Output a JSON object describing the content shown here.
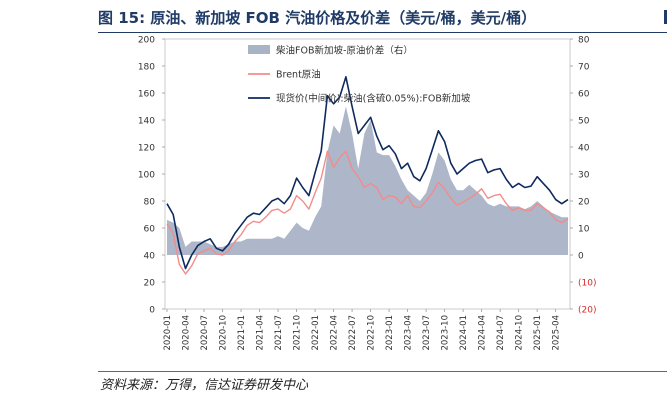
{
  "figure": {
    "title": "图 15:  原油、新加坡 FOB 汽油价格及价差（美元/桶，美元/桶）",
    "source": "资料来源：万得，信达证券研发中心"
  },
  "chart_data": {
    "type": "line",
    "title": "图 15:  原油、新加坡 FOB 汽油价格及价差（美元/桶，美元/桶）",
    "x_tick_labels": [
      "2020-01",
      "2020-04",
      "2020-07",
      "2020-10",
      "2021-01",
      "2021-04",
      "2021-07",
      "2021-10",
      "2022-01",
      "2022-04",
      "2022-07",
      "2022-10",
      "2023-01",
      "2023-04",
      "2023-07",
      "2023-10",
      "2024-01",
      "2024-04",
      "2024-07",
      "2024-10",
      "2025-01",
      "2025-04"
    ],
    "y_left": {
      "range": [
        0,
        200
      ],
      "ticks": [
        "0",
        "20",
        "40",
        "60",
        "80",
        "100",
        "120",
        "140",
        "160",
        "180",
        "200"
      ]
    },
    "y_right": {
      "range": [
        -20,
        80
      ],
      "ticks": [
        "(20)",
        "(10)",
        "0",
        "10",
        "20",
        "30",
        "40",
        "50",
        "60",
        "70",
        "80"
      ],
      "negative_color": "#d62a2a"
    },
    "legend": {
      "position": "top-center"
    },
    "x": [
      "2020-01",
      "2020-02",
      "2020-03",
      "2020-04",
      "2020-05",
      "2020-06",
      "2020-07",
      "2020-08",
      "2020-09",
      "2020-10",
      "2020-11",
      "2020-12",
      "2021-01",
      "2021-02",
      "2021-03",
      "2021-04",
      "2021-05",
      "2021-06",
      "2021-07",
      "2021-08",
      "2021-09",
      "2021-10",
      "2021-11",
      "2021-12",
      "2022-01",
      "2022-02",
      "2022-03",
      "2022-04",
      "2022-05",
      "2022-06",
      "2022-07",
      "2022-08",
      "2022-09",
      "2022-10",
      "2022-11",
      "2022-12",
      "2023-01",
      "2023-02",
      "2023-03",
      "2023-04",
      "2023-05",
      "2023-06",
      "2023-07",
      "2023-08",
      "2023-09",
      "2023-10",
      "2023-11",
      "2023-12",
      "2024-01",
      "2024-02",
      "2024-03",
      "2024-04",
      "2024-05",
      "2024-06",
      "2024-07",
      "2024-08",
      "2024-09",
      "2024-10",
      "2024-11",
      "2024-12",
      "2025-01",
      "2025-02",
      "2025-03",
      "2025-04",
      "2025-05",
      "2025-06"
    ],
    "series": [
      {
        "name": "柴油FOB新加坡-原油价差（右）",
        "axis": "right",
        "kind": "area",
        "color": "#a9b3c6",
        "values": [
          13,
          12,
          10,
          3,
          5,
          5,
          5,
          4,
          3,
          3,
          4,
          5,
          5,
          6,
          6,
          6,
          6,
          6,
          7,
          6,
          9,
          12,
          10,
          9,
          14,
          18,
          38,
          48,
          45,
          55,
          45,
          32,
          45,
          50,
          38,
          37,
          37,
          33,
          28,
          24,
          22,
          20,
          23,
          30,
          38,
          35,
          28,
          24,
          24,
          26,
          24,
          22,
          19,
          18,
          19,
          18,
          18,
          18,
          17,
          18,
          20,
          18,
          16,
          15,
          14,
          14
        ]
      },
      {
        "name": "Brent原油",
        "axis": "left",
        "kind": "line",
        "color": "#f28c8c",
        "values": [
          63,
          56,
          33,
          26,
          32,
          41,
          43,
          45,
          41,
          40,
          43,
          50,
          55,
          62,
          65,
          64,
          68,
          73,
          74,
          71,
          74,
          84,
          80,
          74,
          86,
          97,
          117,
          105,
          112,
          117,
          104,
          98,
          90,
          93,
          90,
          81,
          84,
          83,
          78,
          84,
          76,
          75,
          80,
          86,
          94,
          89,
          82,
          77,
          79,
          82,
          85,
          89,
          82,
          84,
          85,
          78,
          73,
          75,
          73,
          73,
          78,
          75,
          72,
          66,
          64,
          67
        ]
      },
      {
        "name": "现货价(中间价):柴油(含硫0.05%):FOB新加坡",
        "axis": "left",
        "kind": "line",
        "color": "#0e2a5e",
        "values": [
          78,
          70,
          46,
          30,
          40,
          47,
          50,
          52,
          45,
          43,
          48,
          56,
          62,
          68,
          71,
          70,
          75,
          80,
          82,
          78,
          84,
          97,
          90,
          84,
          101,
          117,
          158,
          152,
          157,
          172,
          150,
          130,
          136,
          142,
          128,
          118,
          121,
          115,
          104,
          108,
          98,
          95,
          104,
          118,
          132,
          124,
          108,
          100,
          104,
          108,
          110,
          111,
          101,
          103,
          104,
          96,
          90,
          93,
          90,
          91,
          98,
          93,
          88,
          81,
          78,
          81
        ]
      }
    ]
  }
}
